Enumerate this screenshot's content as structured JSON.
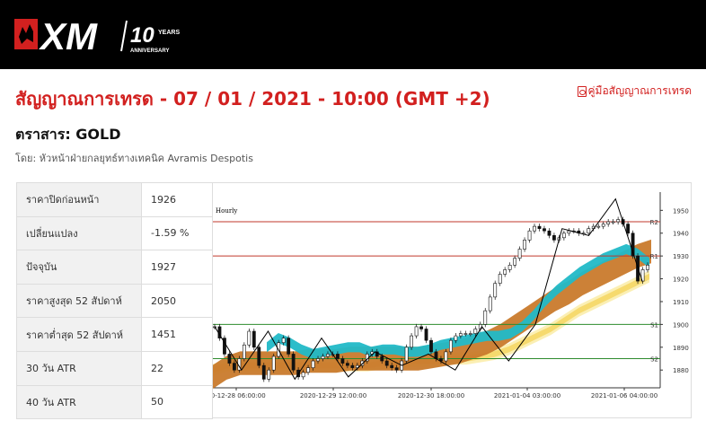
{
  "header": {
    "logo_text": "XM",
    "logo_anniversary_number": "10",
    "logo_years": "YEARS",
    "logo_anniversary": "ANNIVERSARY"
  },
  "page": {
    "title": "สัญญาณการเทรด - 07 / 01 / 2021 - 10:00 (GMT +2)",
    "guide_link": "คู่มือสัญญาณการเทรด",
    "instrument": "ตราสาร: GOLD",
    "byline": "โดย: หัวหน้าฝ่ายกลยุทธ์ทางเทคนิค Avramis Despotis"
  },
  "stats": [
    {
      "label": "ราคาปิดก่อนหน้า",
      "value": "1926"
    },
    {
      "label": "เปลี่ยนแปลง",
      "value": "-1.59 %"
    },
    {
      "label": "ปัจจุบัน",
      "value": "1927"
    },
    {
      "label": "ราคาสูงสุด 52 สัปดาห์",
      "value": "2050"
    },
    {
      "label": "ราคาต่ำสุด 52 สัปดาห์",
      "value": "1451"
    },
    {
      "label": "30 วัน ATR",
      "value": "22"
    },
    {
      "label": "40 วัน ATR",
      "value": "50"
    }
  ],
  "chart_data": {
    "type": "candlestick",
    "title": "Hourly",
    "ylim": [
      1873,
      1958
    ],
    "yticks": [
      1880,
      1890,
      1900,
      1910,
      1920,
      1930,
      1940,
      1950
    ],
    "xticks": [
      "20-12-28 06:00:00",
      "2020-12-29 12:00:00",
      "2020-12-30 18:00:00",
      "2021-01-04 03:00:00",
      "2021-01-06 04:00:00"
    ],
    "levels": [
      {
        "name": "R2",
        "value": 1945,
        "color": "#c0392b"
      },
      {
        "name": "R1",
        "value": 1930,
        "color": "#c0392b"
      },
      {
        "name": "S1",
        "value": 1900,
        "color": "#2e8b2e"
      },
      {
        "name": "S2",
        "value": 1885,
        "color": "#2e8b2e"
      }
    ],
    "zigzag": [
      1899,
      1880,
      1897,
      1876,
      1894,
      1877,
      1888,
      1882,
      1887,
      1880,
      1899,
      1884,
      1900,
      1942,
      1939,
      1955,
      1919
    ],
    "close": [
      1899,
      1894,
      1887,
      1883,
      1880,
      1885,
      1891,
      1897,
      1890,
      1882,
      1876,
      1880,
      1886,
      1892,
      1894,
      1887,
      1880,
      1877,
      1879,
      1881,
      1884,
      1885,
      1886,
      1887,
      1887,
      1885,
      1883,
      1882,
      1881,
      1882,
      1884,
      1887,
      1888,
      1886,
      1884,
      1882,
      1881,
      1880,
      1884,
      1890,
      1895,
      1899,
      1898,
      1893,
      1888,
      1885,
      1884,
      1888,
      1893,
      1895,
      1896,
      1896,
      1896,
      1898,
      1900,
      1906,
      1912,
      1918,
      1922,
      1924,
      1926,
      1929,
      1933,
      1937,
      1941,
      1943,
      1942,
      1941,
      1939,
      1937,
      1938,
      1940,
      1941,
      1941,
      1940,
      1940,
      1942,
      1943,
      1943,
      1944,
      1945,
      1945,
      1946,
      1944,
      1940,
      1930,
      1919,
      1924,
      1926
    ],
    "ma_fast": [
      1890,
      1894,
      1892,
      1889,
      1887,
      1888,
      1889,
      1890,
      1890,
      1888,
      1889,
      1889,
      1888,
      1888,
      1889,
      1891,
      1892,
      1893,
      1894,
      1895,
      1895,
      1896,
      1899,
      1904,
      1910,
      1915,
      1919,
      1923,
      1926,
      1929,
      1931,
      1933,
      1931,
      1927
    ],
    "ma_slow": [
      1877,
      1881,
      1883,
      1883,
      1883,
      1883,
      1883,
      1884,
      1884,
      1884,
      1885,
      1885,
      1885,
      1885,
      1885,
      1885,
      1886,
      1887,
      1888,
      1890,
      1892,
      1895,
      1899,
      1903,
      1907,
      1911,
      1914,
      1918,
      1921,
      1924,
      1927,
      1930,
      1932
    ],
    "ma_yellow": [
      1880,
      1882,
      1882,
      1882,
      1882,
      1882,
      1882,
      1882,
      1882,
      1882,
      1882,
      1882,
      1883,
      1883,
      1884,
      1884,
      1884,
      1885,
      1885,
      1886,
      1887,
      1889,
      1892,
      1895,
      1898,
      1902,
      1906,
      1909,
      1912,
      1915,
      1918,
      1921
    ],
    "colors": {
      "brown": "#c97a2c",
      "teal": "#21b9c7",
      "yellow": "#f6d86a",
      "yellow_light": "#fbeeb0",
      "candle": "#111111"
    }
  }
}
